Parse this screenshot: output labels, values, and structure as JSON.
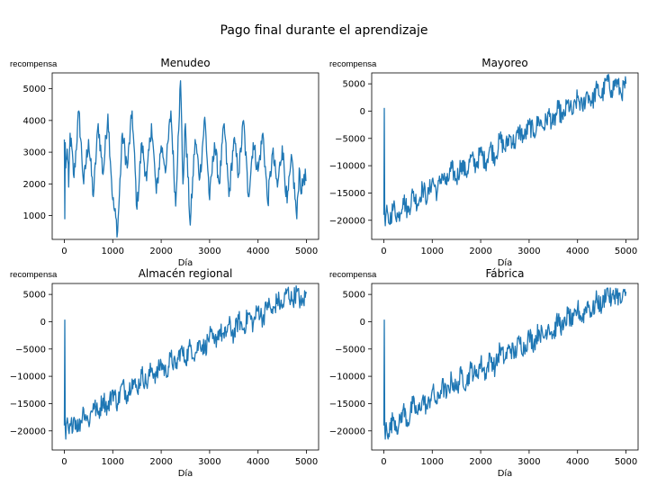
{
  "figure": {
    "suptitle": "Pago final durante el aprendizaje",
    "line_color": "#1f77b4"
  },
  "chart_data": [
    {
      "type": "line",
      "title": "Menudeo",
      "xlabel": "Día",
      "ylabel": "recompensa",
      "xlim": [
        -250,
        5250
      ],
      "ylim": [
        250,
        5500
      ],
      "xticks": [
        0,
        1000,
        2000,
        3000,
        4000,
        5000
      ],
      "yticks": [
        1000,
        2000,
        3000,
        4000,
        5000
      ],
      "series": [
        {
          "values": [
            [
              0,
              3400
            ],
            [
              10,
              900
            ],
            [
              20,
              3300
            ],
            [
              30,
              2500
            ],
            [
              60,
              3100
            ],
            [
              90,
              1900
            ],
            [
              120,
              3600
            ],
            [
              200,
              2200
            ],
            [
              300,
              4300
            ],
            [
              400,
              2000
            ],
            [
              500,
              3400
            ],
            [
              600,
              1600
            ],
            [
              700,
              3900
            ],
            [
              800,
              2300
            ],
            [
              900,
              4200
            ],
            [
              1000,
              1500
            ],
            [
              1100,
              500
            ],
            [
              1200,
              3600
            ],
            [
              1300,
              2500
            ],
            [
              1400,
              4300
            ],
            [
              1500,
              1200
            ],
            [
              1600,
              3300
            ],
            [
              1700,
              2100
            ],
            [
              1800,
              3900
            ],
            [
              1900,
              1700
            ],
            [
              2000,
              3200
            ],
            [
              2100,
              2500
            ],
            [
              2200,
              4300
            ],
            [
              2300,
              1300
            ],
            [
              2350,
              3500
            ],
            [
              2400,
              5250
            ],
            [
              2450,
              2000
            ],
            [
              2500,
              3900
            ],
            [
              2600,
              700
            ],
            [
              2700,
              3400
            ],
            [
              2800,
              2200
            ],
            [
              2900,
              4100
            ],
            [
              3000,
              1500
            ],
            [
              3100,
              3300
            ],
            [
              3200,
              2000
            ],
            [
              3300,
              3900
            ],
            [
              3400,
              1600
            ],
            [
              3500,
              3400
            ],
            [
              3600,
              2300
            ],
            [
              3700,
              4000
            ],
            [
              3800,
              1600
            ],
            [
              3900,
              3300
            ],
            [
              4000,
              2400
            ],
            [
              4100,
              3600
            ],
            [
              4200,
              1400
            ],
            [
              4300,
              3000
            ],
            [
              4400,
              1900
            ],
            [
              4500,
              3200
            ],
            [
              4600,
              1400
            ],
            [
              4700,
              2800
            ],
            [
              4800,
              900
            ],
            [
              4850,
              2500
            ],
            [
              4900,
              1700
            ],
            [
              4950,
              2300
            ],
            [
              5000,
              2100
            ]
          ]
        }
      ]
    },
    {
      "type": "line",
      "title": "Mayoreo",
      "xlabel": "Día",
      "ylabel": "recompensa",
      "xlim": [
        -250,
        5250
      ],
      "ylim": [
        -23500,
        7000
      ],
      "xticks": [
        0,
        1000,
        2000,
        3000,
        4000,
        5000
      ],
      "yticks": [
        -20000,
        -15000,
        -10000,
        -5000,
        0,
        5000
      ],
      "series": [
        {
          "values": [
            [
              0,
              -19000
            ],
            [
              10,
              500
            ],
            [
              20,
              -19500
            ],
            [
              30,
              -21000
            ],
            [
              50,
              -18500
            ],
            [
              100,
              -20500
            ],
            [
              200,
              -17500
            ],
            [
              300,
              -19500
            ],
            [
              400,
              -16000
            ],
            [
              500,
              -18500
            ],
            [
              600,
              -15000
            ],
            [
              700,
              -17000
            ],
            [
              800,
              -14000
            ],
            [
              900,
              -16000
            ],
            [
              1000,
              -12500
            ],
            [
              1100,
              -15000
            ],
            [
              1200,
              -11500
            ],
            [
              1300,
              -13500
            ],
            [
              1400,
              -10500
            ],
            [
              1500,
              -12500
            ],
            [
              1600,
              -9500
            ],
            [
              1700,
              -11500
            ],
            [
              1800,
              -8500
            ],
            [
              1900,
              -10000
            ],
            [
              2000,
              -7500
            ],
            [
              2100,
              -9500
            ],
            [
              2200,
              -6500
            ],
            [
              2300,
              -8500
            ],
            [
              2400,
              -5000
            ],
            [
              2500,
              -7000
            ],
            [
              2600,
              -4500
            ],
            [
              2700,
              -6000
            ],
            [
              2800,
              -3500
            ],
            [
              2900,
              -5000
            ],
            [
              3000,
              -2500
            ],
            [
              3100,
              -4000
            ],
            [
              3200,
              -1500
            ],
            [
              3300,
              -3000
            ],
            [
              3400,
              -500
            ],
            [
              3500,
              -2500
            ],
            [
              3600,
              500
            ],
            [
              3700,
              -1500
            ],
            [
              3800,
              1500
            ],
            [
              3900,
              -500
            ],
            [
              4000,
              2500
            ],
            [
              4100,
              500
            ],
            [
              4200,
              3500
            ],
            [
              4300,
              1500
            ],
            [
              4400,
              4200
            ],
            [
              4500,
              2500
            ],
            [
              4600,
              5800
            ],
            [
              4700,
              3800
            ],
            [
              4800,
              5500
            ],
            [
              4900,
              3200
            ],
            [
              5000,
              5000
            ]
          ]
        }
      ]
    },
    {
      "type": "line",
      "title": "Almacén regional",
      "xlabel": "Día",
      "ylabel": "recompensa",
      "xlim": [
        -250,
        5250
      ],
      "ylim": [
        -23500,
        7000
      ],
      "xticks": [
        0,
        1000,
        2000,
        3000,
        4000,
        5000
      ],
      "yticks": [
        -20000,
        -15000,
        -10000,
        -5000,
        0,
        5000
      ],
      "series": [
        {
          "values": [
            [
              0,
              -19000
            ],
            [
              10,
              300
            ],
            [
              20,
              -19500
            ],
            [
              30,
              -21500
            ],
            [
              50,
              -18500
            ],
            [
              100,
              -20500
            ],
            [
              200,
              -17500
            ],
            [
              300,
              -19500
            ],
            [
              400,
              -16000
            ],
            [
              500,
              -18500
            ],
            [
              600,
              -15000
            ],
            [
              700,
              -17000
            ],
            [
              800,
              -14000
            ],
            [
              900,
              -16000
            ],
            [
              1000,
              -12500
            ],
            [
              1100,
              -15000
            ],
            [
              1200,
              -11500
            ],
            [
              1300,
              -13500
            ],
            [
              1400,
              -10500
            ],
            [
              1500,
              -12500
            ],
            [
              1600,
              -9500
            ],
            [
              1700,
              -11500
            ],
            [
              1800,
              -8500
            ],
            [
              1900,
              -10000
            ],
            [
              2000,
              -7500
            ],
            [
              2100,
              -9500
            ],
            [
              2200,
              -6500
            ],
            [
              2300,
              -8500
            ],
            [
              2400,
              -5000
            ],
            [
              2500,
              -7000
            ],
            [
              2600,
              -4500
            ],
            [
              2700,
              -6000
            ],
            [
              2800,
              -3500
            ],
            [
              2900,
              -5000
            ],
            [
              3000,
              -2500
            ],
            [
              3100,
              -4000
            ],
            [
              3200,
              -1500
            ],
            [
              3300,
              -3000
            ],
            [
              3400,
              -500
            ],
            [
              3500,
              -2500
            ],
            [
              3600,
              500
            ],
            [
              3700,
              -1500
            ],
            [
              3800,
              1500
            ],
            [
              3900,
              -500
            ],
            [
              4000,
              2500
            ],
            [
              4100,
              500
            ],
            [
              4200,
              3500
            ],
            [
              4300,
              1500
            ],
            [
              4400,
              4200
            ],
            [
              4500,
              2500
            ],
            [
              4600,
              5800
            ],
            [
              4700,
              3800
            ],
            [
              4800,
              5500
            ],
            [
              4900,
              3000
            ],
            [
              5000,
              5200
            ]
          ]
        }
      ]
    },
    {
      "type": "line",
      "title": "Fábrica",
      "xlabel": "Día",
      "ylabel": "recompensa",
      "xlim": [
        -250,
        5250
      ],
      "ylim": [
        -23500,
        7000
      ],
      "xticks": [
        0,
        1000,
        2000,
        3000,
        4000,
        5000
      ],
      "yticks": [
        -20000,
        -15000,
        -10000,
        -5000,
        0,
        5000
      ],
      "series": [
        {
          "values": [
            [
              0,
              -19000
            ],
            [
              10,
              300
            ],
            [
              20,
              -19500
            ],
            [
              30,
              -21500
            ],
            [
              50,
              -18500
            ],
            [
              100,
              -20500
            ],
            [
              200,
              -17500
            ],
            [
              300,
              -19500
            ],
            [
              400,
              -16000
            ],
            [
              500,
              -18500
            ],
            [
              600,
              -15000
            ],
            [
              700,
              -17000
            ],
            [
              800,
              -14000
            ],
            [
              900,
              -16000
            ],
            [
              1000,
              -12500
            ],
            [
              1100,
              -15000
            ],
            [
              1200,
              -11500
            ],
            [
              1300,
              -13500
            ],
            [
              1400,
              -10500
            ],
            [
              1500,
              -12500
            ],
            [
              1600,
              -9500
            ],
            [
              1700,
              -11500
            ],
            [
              1800,
              -8500
            ],
            [
              1900,
              -10000
            ],
            [
              2000,
              -7500
            ],
            [
              2100,
              -9500
            ],
            [
              2200,
              -6500
            ],
            [
              2300,
              -8500
            ],
            [
              2400,
              -5000
            ],
            [
              2500,
              -7000
            ],
            [
              2600,
              -4500
            ],
            [
              2700,
              -6000
            ],
            [
              2800,
              -3500
            ],
            [
              2900,
              -5000
            ],
            [
              3000,
              -2500
            ],
            [
              3100,
              -4000
            ],
            [
              3200,
              -1500
            ],
            [
              3300,
              -3000
            ],
            [
              3400,
              -500
            ],
            [
              3500,
              -2500
            ],
            [
              3600,
              500
            ],
            [
              3700,
              -1500
            ],
            [
              3800,
              1500
            ],
            [
              3900,
              -500
            ],
            [
              4000,
              2500
            ],
            [
              4100,
              500
            ],
            [
              4200,
              3500
            ],
            [
              4300,
              1500
            ],
            [
              4400,
              4200
            ],
            [
              4500,
              2500
            ],
            [
              4600,
              6000
            ],
            [
              4700,
              3800
            ],
            [
              4800,
              5500
            ],
            [
              4900,
              3500
            ],
            [
              5000,
              5500
            ]
          ]
        }
      ]
    }
  ]
}
